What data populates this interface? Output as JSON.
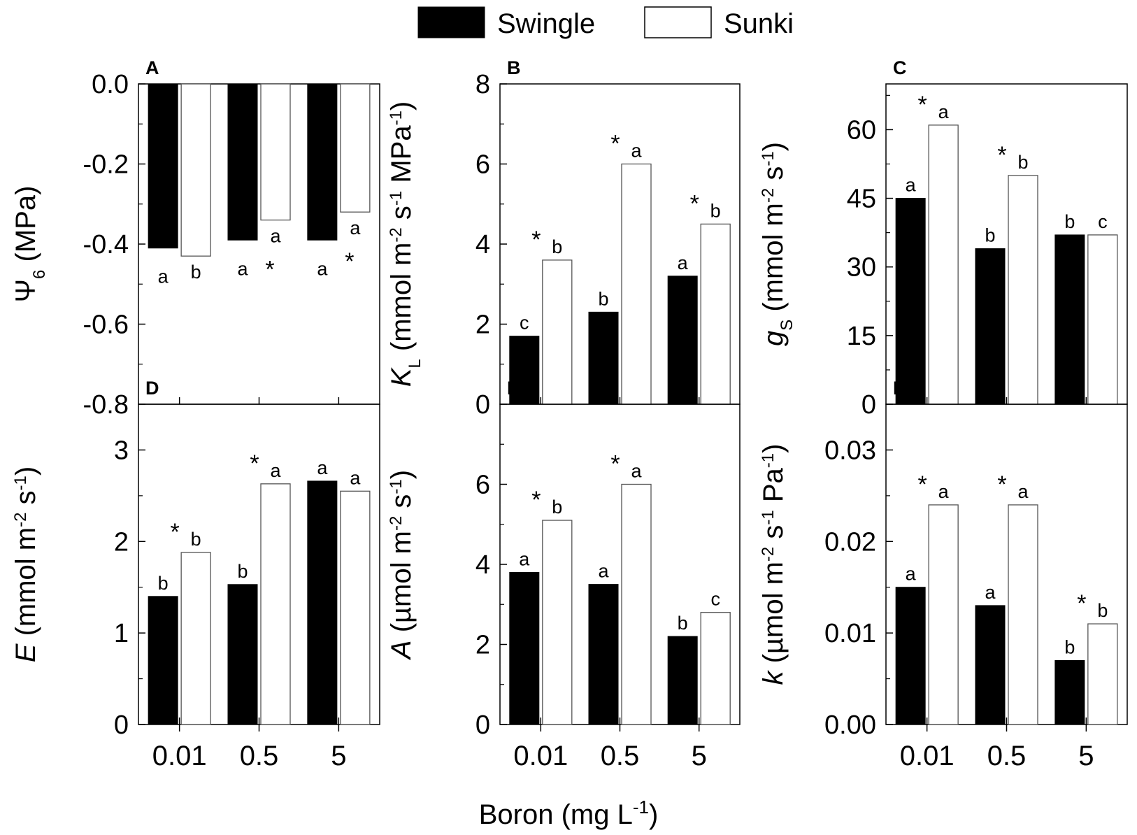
{
  "legend": [
    {
      "name": "Swingle",
      "color": "#000000"
    },
    {
      "name": "Sunki",
      "color": "#ffffff"
    }
  ],
  "shared_x_label": {
    "main": "Boron (mg L",
    "sup": "-1",
    "end": ")"
  },
  "chart_data": [
    {
      "type": "bar",
      "panel": "A",
      "categories": [
        "0.01",
        "0.5",
        "5"
      ],
      "series": [
        {
          "name": "Swingle",
          "values": [
            -0.41,
            -0.39,
            -0.39
          ],
          "letters": [
            "a",
            "a",
            "a"
          ],
          "stars": [
            "",
            "",
            ""
          ]
        },
        {
          "name": "Sunki",
          "values": [
            -0.43,
            -0.34,
            -0.32
          ],
          "letters": [
            "b",
            "a",
            "a"
          ],
          "stars": [
            "",
            "*",
            "*"
          ]
        }
      ],
      "ylim": [
        -0.8,
        0.0
      ],
      "yticks": [
        "0.0",
        "-0.2",
        "-0.4",
        "-0.6",
        "-0.8"
      ],
      "ylabel": [
        {
          "t": "Ψ"
        },
        {
          "t": "6",
          "sub": true
        },
        {
          "t": " (MPa)"
        }
      ]
    },
    {
      "type": "bar",
      "panel": "B",
      "categories": [
        "0.01",
        "0.5",
        "5"
      ],
      "series": [
        {
          "name": "Swingle",
          "values": [
            1.7,
            2.3,
            3.2
          ],
          "letters": [
            "c",
            "b",
            "a"
          ],
          "stars": [
            "",
            "",
            ""
          ]
        },
        {
          "name": "Sunki",
          "values": [
            3.6,
            6.0,
            4.5
          ],
          "letters": [
            "b",
            "a",
            "b"
          ],
          "stars": [
            "*",
            "*",
            "*"
          ]
        }
      ],
      "ylim": [
        0,
        8
      ],
      "yticks": [
        "0",
        "2",
        "4",
        "6",
        "8"
      ],
      "ylabel": [
        {
          "t": "K",
          "italic": true
        },
        {
          "t": "L",
          "sub": true
        },
        {
          "t": " (mmol m"
        },
        {
          "t": "-2",
          "sup": true
        },
        {
          "t": " s"
        },
        {
          "t": "-1",
          "sup": true
        },
        {
          "t": " MPa"
        },
        {
          "t": "-1",
          "sup": true
        },
        {
          "t": ")"
        }
      ]
    },
    {
      "type": "bar",
      "panel": "C",
      "categories": [
        "0.01",
        "0.5",
        "5"
      ],
      "series": [
        {
          "name": "Swingle",
          "values": [
            45,
            34,
            37
          ],
          "letters": [
            "a",
            "b",
            "b"
          ],
          "stars": [
            "",
            "",
            ""
          ]
        },
        {
          "name": "Sunki",
          "values": [
            61,
            50,
            37
          ],
          "letters": [
            "a",
            "b",
            "c"
          ],
          "stars": [
            "*",
            "*",
            ""
          ]
        }
      ],
      "ylim": [
        0,
        70
      ],
      "yticks": [
        "0",
        "15",
        "30",
        "45",
        "60"
      ],
      "ylabel": [
        {
          "t": "g",
          "italic": true
        },
        {
          "t": "S",
          "sub": true
        },
        {
          "t": " (mmol m"
        },
        {
          "t": "-2",
          "sup": true
        },
        {
          "t": " s"
        },
        {
          "t": "-1",
          "sup": true
        },
        {
          "t": ")"
        }
      ]
    },
    {
      "type": "bar",
      "panel": "D",
      "categories": [
        "0.01",
        "0.5",
        "5"
      ],
      "series": [
        {
          "name": "Swingle",
          "values": [
            1.4,
            1.53,
            2.66
          ],
          "letters": [
            "b",
            "b",
            "a"
          ],
          "stars": [
            "",
            "",
            ""
          ]
        },
        {
          "name": "Sunki",
          "values": [
            1.88,
            2.63,
            2.55
          ],
          "letters": [
            "b",
            "a",
            "a"
          ],
          "stars": [
            "*",
            "*",
            ""
          ]
        }
      ],
      "ylim": [
        0,
        3.5
      ],
      "yticks": [
        "0",
        "1",
        "2",
        "3"
      ],
      "ylabel": [
        {
          "t": "E",
          "italic": true
        },
        {
          "t": " (mmol m"
        },
        {
          "t": "-2",
          "sup": true
        },
        {
          "t": " s"
        },
        {
          "t": "-1",
          "sup": true
        },
        {
          "t": ")"
        }
      ]
    },
    {
      "type": "bar",
      "panel": "E",
      "categories": [
        "0.01",
        "0.5",
        "5"
      ],
      "series": [
        {
          "name": "Swingle",
          "values": [
            3.8,
            3.5,
            2.2
          ],
          "letters": [
            "a",
            "a",
            "b"
          ],
          "stars": [
            "",
            "",
            ""
          ]
        },
        {
          "name": "Sunki",
          "values": [
            5.1,
            6.0,
            2.8
          ],
          "letters": [
            "b",
            "a",
            "c"
          ],
          "stars": [
            "*",
            "*",
            ""
          ]
        }
      ],
      "ylim": [
        0,
        8
      ],
      "yticks": [
        "0",
        "2",
        "4",
        "6"
      ],
      "ylabel": [
        {
          "t": "A",
          "italic": true
        },
        {
          "t": " (µmol m"
        },
        {
          "t": "-2",
          "sup": true
        },
        {
          "t": " s"
        },
        {
          "t": "-1",
          "sup": true
        },
        {
          "t": ")"
        }
      ]
    },
    {
      "type": "bar",
      "panel": "F",
      "categories": [
        "0.01",
        "0.5",
        "5"
      ],
      "series": [
        {
          "name": "Swingle",
          "values": [
            0.015,
            0.013,
            0.007
          ],
          "letters": [
            "a",
            "a",
            "b"
          ],
          "stars": [
            "",
            "",
            ""
          ]
        },
        {
          "name": "Sunki",
          "values": [
            0.024,
            0.024,
            0.011
          ],
          "letters": [
            "a",
            "a",
            "b"
          ],
          "stars": [
            "*",
            "*",
            "*"
          ]
        }
      ],
      "ylim": [
        0,
        0.035
      ],
      "yticks": [
        "0.00",
        "0.01",
        "0.02",
        "0.03"
      ],
      "ylabel": [
        {
          "t": "k",
          "italic": true
        },
        {
          "t": " (µmol m"
        },
        {
          "t": "-2",
          "sup": true
        },
        {
          "t": " s"
        },
        {
          "t": "-1",
          "sup": true
        },
        {
          "t": " Pa"
        },
        {
          "t": "-1",
          "sup": true
        },
        {
          "t": ")"
        }
      ]
    }
  ]
}
